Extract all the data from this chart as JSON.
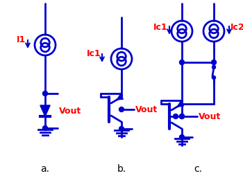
{
  "blue": "#0000CC",
  "red": "#FF0000",
  "bg": "#FFFFFF",
  "label_a": "a.",
  "label_b": "b.",
  "label_c": "c.",
  "I1": "I1",
  "Ic1": "Ic1",
  "Ic1c": "Ic1",
  "Ic2": "Ic2",
  "Vout": "Vout",
  "figsize": [
    3.5,
    2.57
  ],
  "dpi": 100
}
